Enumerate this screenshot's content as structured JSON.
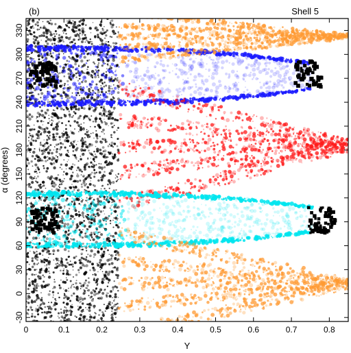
{
  "chart_data": {
    "type": "scatter",
    "panel_label": "(b)",
    "title": "Shell 5",
    "xlabel": "Y",
    "ylabel": "α (degrees)",
    "xlim": [
      0,
      0.85
    ],
    "ylim": [
      -35,
      345
    ],
    "x_ticks": [
      0,
      0.1,
      0.2,
      0.3,
      0.4,
      0.5,
      0.6,
      0.7,
      0.8
    ],
    "x_tick_labels": [
      "0",
      "0.1",
      "0.2",
      "0.3",
      "0.4",
      "0.5",
      "0.6",
      "0.7",
      "0.8"
    ],
    "y_ticks": [
      -30,
      0,
      30,
      60,
      90,
      120,
      150,
      180,
      210,
      240,
      270,
      300,
      330
    ],
    "y_tick_labels": [
      "-30",
      "0",
      "30",
      "60",
      "90",
      "120",
      "150",
      "180",
      "210",
      "240",
      "270",
      "300",
      "330"
    ],
    "grid": false,
    "colors": {
      "black": "#000000",
      "blue": "#1a1aff",
      "red": "#ff1a1a",
      "cyan": "#00e5ee",
      "orange": "#ff9a33"
    },
    "regions": [
      {
        "color": "black",
        "x": [
          0.0,
          0.245
        ],
        "y": [
          -35,
          345
        ],
        "density": "dense-noise"
      },
      {
        "color": "blue",
        "x": [
          0.0,
          0.75
        ],
        "y": [
          235,
          310
        ],
        "shape": "lens",
        "center_y": 273
      },
      {
        "color": "red",
        "x": [
          0.245,
          0.85
        ],
        "y": [
          130,
          240
        ],
        "shape": "rays"
      },
      {
        "color": "cyan",
        "x": [
          0.0,
          0.76
        ],
        "y": [
          58,
          128
        ],
        "shape": "lens",
        "center_y": 93
      },
      {
        "color": "orange",
        "x": [
          0.245,
          0.85
        ],
        "y": [
          -35,
          60
        ],
        "shape": "rays"
      },
      {
        "color": "orange",
        "x": [
          0.245,
          0.85
        ],
        "y": [
          300,
          345
        ],
        "shape": "rays"
      }
    ],
    "hotspots": [
      {
        "color": "black",
        "x": 0.045,
        "y": 275
      },
      {
        "color": "black",
        "x": 0.745,
        "y": 275
      },
      {
        "color": "black",
        "x": 0.05,
        "y": 92
      },
      {
        "color": "black",
        "x": 0.78,
        "y": 92
      }
    ]
  }
}
